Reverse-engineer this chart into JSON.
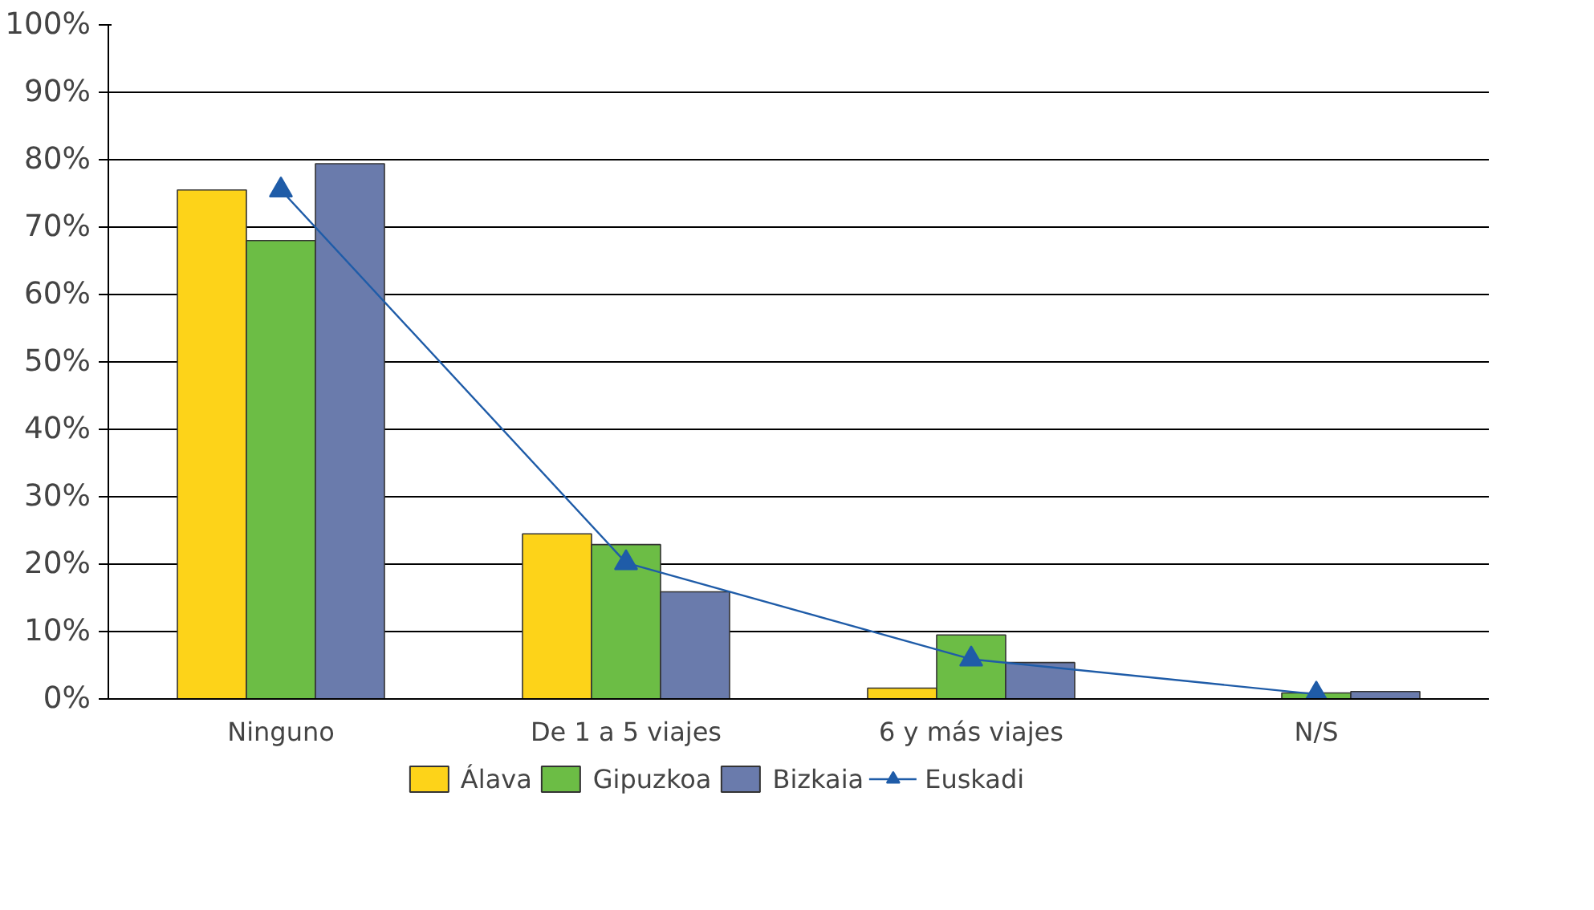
{
  "chart_data": {
    "type": "bar",
    "categories": [
      "Ninguno",
      "De 1 a 5 viajes",
      "6 y más viajes",
      "N/S"
    ],
    "series": [
      {
        "name": "Álava",
        "color": "#fdd319",
        "values": [
          75.5,
          24.5,
          1.6,
          0
        ]
      },
      {
        "name": "Gipuzkoa",
        "color": "#6cbd45",
        "values": [
          68.0,
          22.9,
          9.5,
          0.9
        ]
      },
      {
        "name": "Bizkaia",
        "color": "#6a7bac",
        "values": [
          79.4,
          15.9,
          5.4,
          1.1
        ]
      },
      {
        "name": "Euskadi",
        "color": "#1f5ca8",
        "type": "line",
        "marker": "triangle",
        "values": [
          75.5,
          20.2,
          5.9,
          0.7
        ]
      }
    ],
    "ylim": [
      0,
      100
    ],
    "yticks": [
      {
        "value": 0,
        "label": "0%"
      },
      {
        "value": 10,
        "label": "10%"
      },
      {
        "value": 20,
        "label": "20%"
      },
      {
        "value": 30,
        "label": "30%"
      },
      {
        "value": 40,
        "label": "40%"
      },
      {
        "value": 50,
        "label": "50%"
      },
      {
        "value": 60,
        "label": "60%"
      },
      {
        "value": 70,
        "label": "70%"
      },
      {
        "value": 80,
        "label": "80%"
      },
      {
        "value": 90,
        "label": "90%"
      },
      {
        "value": 100,
        "label": "100%"
      }
    ],
    "grid": "y",
    "legend": "bottom"
  }
}
